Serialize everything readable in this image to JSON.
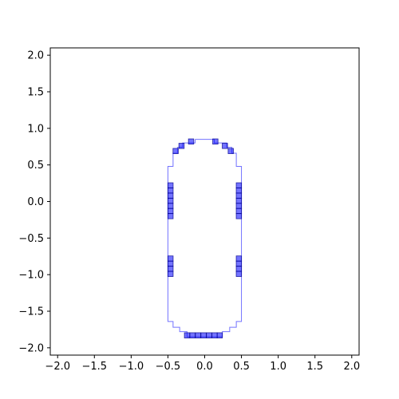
{
  "chart_data": {
    "type": "scatter",
    "title": "",
    "xlabel": "",
    "ylabel": "",
    "xlim": [
      -2.1,
      2.1
    ],
    "ylim": [
      -2.1,
      2.1
    ],
    "grid": false,
    "x_ticks": [
      -2.0,
      -1.5,
      -1.0,
      -0.5,
      0.0,
      0.5,
      1.0,
      1.5,
      2.0
    ],
    "x_tick_labels": [
      "−2.0",
      "−1.5",
      "−1.0",
      "−0.5",
      "0.0",
      "0.5",
      "1.0",
      "1.5",
      "2.0"
    ],
    "y_ticks": [
      2.0,
      1.5,
      1.0,
      0.5,
      0.0,
      -0.5,
      -1.0,
      -1.5,
      -2.0
    ],
    "y_tick_labels": [
      "2.0",
      "1.5",
      "1.0",
      "0.5",
      "0.0",
      "−0.5",
      "−1.0",
      "−1.5",
      "−2.0"
    ],
    "outline": {
      "color": "#0000ff",
      "points": [
        [
          -0.13,
          0.85
        ],
        [
          0.13,
          0.85
        ],
        [
          0.13,
          0.8
        ],
        [
          0.3,
          0.8
        ],
        [
          0.3,
          0.74
        ],
        [
          0.37,
          0.74
        ],
        [
          0.37,
          0.66
        ],
        [
          0.43,
          0.66
        ],
        [
          0.43,
          0.48
        ],
        [
          0.5,
          0.48
        ],
        [
          0.5,
          -1.64
        ],
        [
          0.43,
          -1.64
        ],
        [
          0.43,
          -1.72
        ],
        [
          0.34,
          -1.72
        ],
        [
          0.34,
          -1.78
        ],
        [
          0.24,
          -1.78
        ],
        [
          0.24,
          -1.85
        ],
        [
          -0.24,
          -1.85
        ],
        [
          -0.24,
          -1.78
        ],
        [
          -0.34,
          -1.78
        ],
        [
          -0.34,
          -1.72
        ],
        [
          -0.43,
          -1.72
        ],
        [
          -0.43,
          -1.64
        ],
        [
          -0.5,
          -1.64
        ],
        [
          -0.5,
          0.48
        ],
        [
          -0.43,
          0.48
        ],
        [
          -0.43,
          0.66
        ],
        [
          -0.37,
          0.66
        ],
        [
          -0.37,
          0.74
        ],
        [
          -0.3,
          0.74
        ],
        [
          -0.3,
          0.8
        ],
        [
          -0.13,
          0.8
        ],
        [
          -0.13,
          0.85
        ]
      ]
    },
    "cells": {
      "color": "#0000ff",
      "size": 0.072,
      "points": [
        [
          -0.185,
          0.82
        ],
        [
          0.145,
          0.82
        ],
        [
          -0.315,
          0.76
        ],
        [
          0.275,
          0.76
        ],
        [
          -0.395,
          0.69
        ],
        [
          0.355,
          0.69
        ],
        [
          -0.465,
          0.22
        ],
        [
          -0.465,
          0.15
        ],
        [
          -0.465,
          0.08
        ],
        [
          -0.465,
          0.01
        ],
        [
          -0.465,
          -0.06
        ],
        [
          -0.465,
          -0.13
        ],
        [
          -0.465,
          -0.2
        ],
        [
          0.465,
          0.22
        ],
        [
          0.465,
          0.15
        ],
        [
          0.465,
          0.08
        ],
        [
          0.465,
          0.01
        ],
        [
          0.465,
          -0.06
        ],
        [
          0.465,
          -0.13
        ],
        [
          0.465,
          -0.2
        ],
        [
          -0.465,
          -0.78
        ],
        [
          -0.465,
          -0.85
        ],
        [
          -0.465,
          -0.92
        ],
        [
          -0.465,
          -0.99
        ],
        [
          0.465,
          -0.78
        ],
        [
          0.465,
          -0.85
        ],
        [
          0.465,
          -0.92
        ],
        [
          0.465,
          -0.99
        ],
        [
          -0.24,
          -1.83
        ],
        [
          -0.165,
          -1.83
        ],
        [
          -0.09,
          -1.83
        ],
        [
          -0.015,
          -1.83
        ],
        [
          0.06,
          -1.83
        ],
        [
          0.135,
          -1.83
        ],
        [
          0.205,
          -1.83
        ]
      ]
    }
  }
}
